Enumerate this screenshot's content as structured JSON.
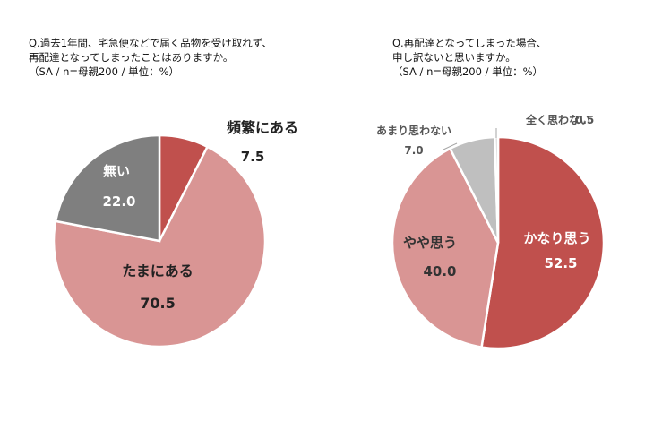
{
  "charts": [
    {
      "question_line1": "Q.過去1年間、宅急便などで届く品物を受け取れず、",
      "question_line2": "再配達となってしまったことはありますか。",
      "note": "（SA / n=母親200 / 単位：%）"
    },
    {
      "question_line1": "Q.再配達となってしまった場合、",
      "question_line2": "申し訳ないと思いますか。",
      "note": "（SA / n=母親200 / 単位：%）"
    }
  ],
  "chart_data": [
    {
      "type": "pie",
      "title": "Q.過去1年間、宅急便などで届く品物を受け取れず、再配達となってしまったことはありますか。",
      "subtitle": "（SA / n=母親200 / 単位：%）",
      "slices": [
        {
          "label": "頻繁にある",
          "value": 7.5,
          "color": "#c0504d"
        },
        {
          "label": "たまにある",
          "value": 70.5,
          "color": "#d99594"
        },
        {
          "label": "無い",
          "value": 22.0,
          "color": "#7f7f7f"
        }
      ]
    },
    {
      "type": "pie",
      "title": "Q.再配達となってしまった場合、申し訳ないと思いますか。",
      "subtitle": "（SA / n=母親200 / 単位：%）",
      "slices": [
        {
          "label": "かなり思う",
          "value": 52.5,
          "color": "#c0504d"
        },
        {
          "label": "やや思う",
          "value": 40.0,
          "color": "#d99594"
        },
        {
          "label": "あまり思わない",
          "value": 7.0,
          "color": "#bfbfbf"
        },
        {
          "label": "全く思わない",
          "value": 0.5,
          "color": "#d9d9d9"
        }
      ]
    }
  ]
}
